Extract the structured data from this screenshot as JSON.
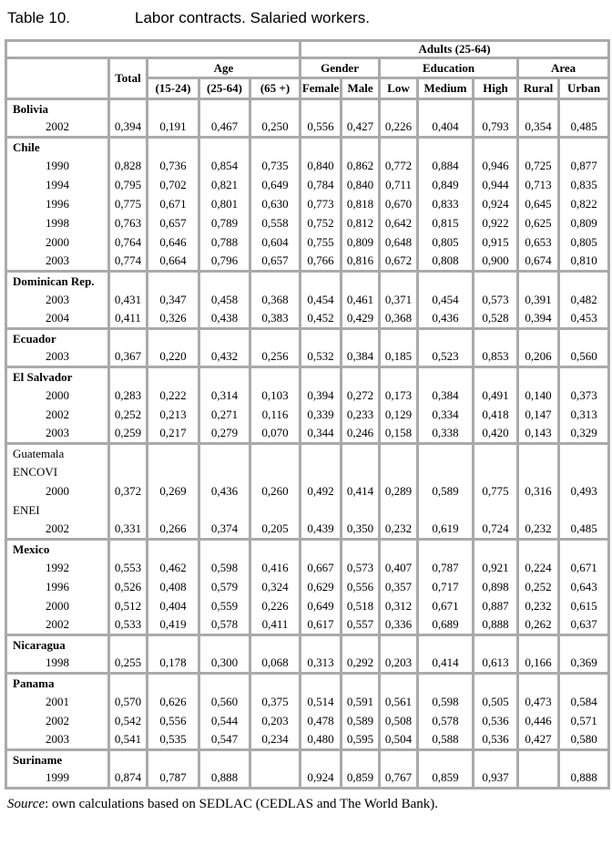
{
  "colors": {
    "border": "#aaaaaa",
    "text": "#000000",
    "background": "#ffffff"
  },
  "title": {
    "label": "Table 10.",
    "caption": "Labor contracts. Salaried workers."
  },
  "header": {
    "adults": "Adults (25-64)",
    "total": "Total",
    "groups": [
      {
        "label": "Age",
        "cols": [
          "(15-24)",
          "(25-64)",
          "(65 +)"
        ]
      },
      {
        "label": "Gender",
        "cols": [
          "Female",
          "Male"
        ]
      },
      {
        "label": "Education",
        "cols": [
          "Low",
          "Medium",
          "High"
        ]
      },
      {
        "label": "Area",
        "cols": [
          "Rural",
          "Urban"
        ]
      }
    ]
  },
  "table": {
    "columns": [
      "total",
      "age-15-24",
      "age-25-64",
      "age-65plus",
      "female",
      "male",
      "edu-low",
      "edu-medium",
      "edu-high",
      "rural",
      "urban"
    ],
    "rows": [
      {
        "type": "country",
        "label": "Bolivia"
      },
      {
        "type": "year",
        "label": "2002",
        "values": [
          "0,394",
          "0,191",
          "0,467",
          "0,250",
          "0,556",
          "0,427",
          "0,226",
          "0,404",
          "0,793",
          "0,354",
          "0,485"
        ]
      },
      {
        "type": "country",
        "label": "Chile"
      },
      {
        "type": "year",
        "label": "1990",
        "values": [
          "0,828",
          "0,736",
          "0,854",
          "0,735",
          "0,840",
          "0,862",
          "0,772",
          "0,884",
          "0,946",
          "0,725",
          "0,877"
        ]
      },
      {
        "type": "year",
        "label": "1994",
        "values": [
          "0,795",
          "0,702",
          "0,821",
          "0,649",
          "0,784",
          "0,840",
          "0,711",
          "0,849",
          "0,944",
          "0,713",
          "0,835"
        ]
      },
      {
        "type": "year",
        "label": "1996",
        "values": [
          "0,775",
          "0,671",
          "0,801",
          "0,630",
          "0,773",
          "0,818",
          "0,670",
          "0,833",
          "0,924",
          "0,645",
          "0,822"
        ]
      },
      {
        "type": "year",
        "label": "1998",
        "values": [
          "0,763",
          "0,657",
          "0,789",
          "0,558",
          "0,752",
          "0,812",
          "0,642",
          "0,815",
          "0,922",
          "0,625",
          "0,809"
        ]
      },
      {
        "type": "year",
        "label": "2000",
        "values": [
          "0,764",
          "0,646",
          "0,788",
          "0,604",
          "0,755",
          "0,809",
          "0,648",
          "0,805",
          "0,915",
          "0,653",
          "0,805"
        ]
      },
      {
        "type": "year",
        "label": "2003",
        "values": [
          "0,774",
          "0,664",
          "0,796",
          "0,657",
          "0,766",
          "0,816",
          "0,672",
          "0,808",
          "0,900",
          "0,674",
          "0,810"
        ]
      },
      {
        "type": "country",
        "label": "Dominican Rep."
      },
      {
        "type": "year",
        "label": "2003",
        "values": [
          "0,431",
          "0,347",
          "0,458",
          "0,368",
          "0,454",
          "0,461",
          "0,371",
          "0,454",
          "0,573",
          "0,391",
          "0,482"
        ]
      },
      {
        "type": "year",
        "label": "2004",
        "values": [
          "0,411",
          "0,326",
          "0,438",
          "0,383",
          "0,452",
          "0,429",
          "0,368",
          "0,436",
          "0,528",
          "0,394",
          "0,453"
        ]
      },
      {
        "type": "country",
        "label": "Ecuador"
      },
      {
        "type": "year",
        "label": "2003",
        "values": [
          "0,367",
          "0,220",
          "0,432",
          "0,256",
          "0,532",
          "0,384",
          "0,185",
          "0,523",
          "0,853",
          "0,206",
          "0,560"
        ]
      },
      {
        "type": "country",
        "label": "El Salvador"
      },
      {
        "type": "year",
        "label": "2000",
        "values": [
          "0,283",
          "0,222",
          "0,314",
          "0,103",
          "0,394",
          "0,272",
          "0,173",
          "0,384",
          "0,491",
          "0,140",
          "0,373"
        ]
      },
      {
        "type": "year",
        "label": "2002",
        "values": [
          "0,252",
          "0,213",
          "0,271",
          "0,116",
          "0,339",
          "0,233",
          "0,129",
          "0,334",
          "0,418",
          "0,147",
          "0,313"
        ]
      },
      {
        "type": "year",
        "label": "2003",
        "values": [
          "0,259",
          "0,217",
          "0,279",
          "0,070",
          "0,344",
          "0,246",
          "0,158",
          "0,338",
          "0,420",
          "0,143",
          "0,329"
        ]
      },
      {
        "type": "country",
        "label": "Guatemala",
        "bold": false
      },
      {
        "type": "sublabel",
        "label": "ENCOVI"
      },
      {
        "type": "year",
        "label": "2000",
        "values": [
          "0,372",
          "0,269",
          "0,436",
          "0,260",
          "0,492",
          "0,414",
          "0,289",
          "0,589",
          "0,775",
          "0,316",
          "0,493"
        ]
      },
      {
        "type": "sublabel",
        "label": "ENEI"
      },
      {
        "type": "year",
        "label": "2002",
        "values": [
          "0,331",
          "0,266",
          "0,374",
          "0,205",
          "0,439",
          "0,350",
          "0,232",
          "0,619",
          "0,724",
          "0,232",
          "0,485"
        ]
      },
      {
        "type": "country",
        "label": "Mexico"
      },
      {
        "type": "year",
        "label": "1992",
        "values": [
          "0,553",
          "0,462",
          "0,598",
          "0,416",
          "0,667",
          "0,573",
          "0,407",
          "0,787",
          "0,921",
          "0,224",
          "0,671"
        ]
      },
      {
        "type": "year",
        "label": "1996",
        "values": [
          "0,526",
          "0,408",
          "0,579",
          "0,324",
          "0,629",
          "0,556",
          "0,357",
          "0,717",
          "0,898",
          "0,252",
          "0,643"
        ]
      },
      {
        "type": "year",
        "label": "2000",
        "values": [
          "0,512",
          "0,404",
          "0,559",
          "0,226",
          "0,649",
          "0,518",
          "0,312",
          "0,671",
          "0,887",
          "0,232",
          "0,615"
        ]
      },
      {
        "type": "year",
        "label": "2002",
        "values": [
          "0,533",
          "0,419",
          "0,578",
          "0,411",
          "0,617",
          "0,557",
          "0,336",
          "0,689",
          "0,888",
          "0,262",
          "0,637"
        ]
      },
      {
        "type": "country",
        "label": "Nicaragua"
      },
      {
        "type": "year",
        "label": "1998",
        "values": [
          "0,255",
          "0,178",
          "0,300",
          "0,068",
          "0,313",
          "0,292",
          "0,203",
          "0,414",
          "0,613",
          "0,166",
          "0,369"
        ]
      },
      {
        "type": "country",
        "label": "Panama"
      },
      {
        "type": "year",
        "label": "2001",
        "values": [
          "0,570",
          "0,626",
          "0,560",
          "0,375",
          "0,514",
          "0,591",
          "0,561",
          "0,598",
          "0,505",
          "0,473",
          "0,584"
        ]
      },
      {
        "type": "year",
        "label": "2002",
        "values": [
          "0,542",
          "0,556",
          "0,544",
          "0,203",
          "0,478",
          "0,589",
          "0,508",
          "0,578",
          "0,536",
          "0,446",
          "0,571"
        ]
      },
      {
        "type": "year",
        "label": "2003",
        "values": [
          "0,541",
          "0,535",
          "0,547",
          "0,234",
          "0,480",
          "0,595",
          "0,504",
          "0,588",
          "0,536",
          "0,427",
          "0,580"
        ]
      },
      {
        "type": "country",
        "label": "Suriname"
      },
      {
        "type": "year",
        "label": "1999",
        "values": [
          "0,874",
          "0,787",
          "0,888",
          "",
          "0,924",
          "0,859",
          "0,767",
          "0,859",
          "0,937",
          "",
          "0,888"
        ]
      }
    ]
  },
  "source": {
    "label": "Source",
    "text": ": own calculations based on SEDLAC (CEDLAS and The World Bank)."
  }
}
